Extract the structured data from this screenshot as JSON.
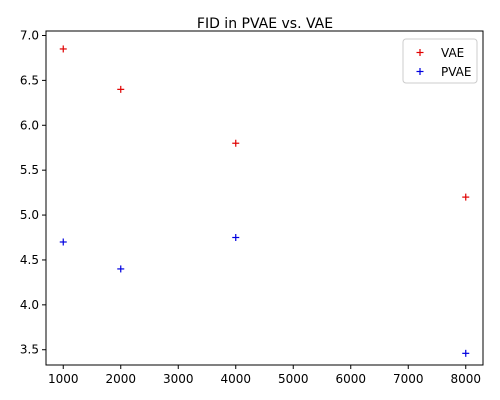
{
  "chart_data": {
    "type": "scatter",
    "title": "FID in PVAE vs. VAE",
    "xlabel": "",
    "ylabel": "",
    "xlim": [
      700,
      8300
    ],
    "ylim": [
      3.33,
      7.05
    ],
    "x_ticks": [
      1000,
      2000,
      3000,
      4000,
      5000,
      6000,
      7000,
      8000
    ],
    "y_ticks": [
      3.5,
      4.0,
      4.5,
      5.0,
      5.5,
      6.0,
      6.5,
      7.0
    ],
    "y_tick_labels": [
      "3.5",
      "4.0",
      "4.5",
      "5.0",
      "5.5",
      "6.0",
      "6.5",
      "7.0"
    ],
    "grid": false,
    "legend_position": "top-right",
    "marker": "plus",
    "series": [
      {
        "name": "VAE",
        "color": "#e00000",
        "points": [
          {
            "x": 1000,
            "y": 6.85
          },
          {
            "x": 2000,
            "y": 6.4
          },
          {
            "x": 4000,
            "y": 5.8
          },
          {
            "x": 8000,
            "y": 5.2
          }
        ]
      },
      {
        "name": "PVAE",
        "color": "#0000e0",
        "points": [
          {
            "x": 1000,
            "y": 4.7
          },
          {
            "x": 2000,
            "y": 4.4
          },
          {
            "x": 4000,
            "y": 4.75
          },
          {
            "x": 8000,
            "y": 3.46
          }
        ]
      }
    ]
  }
}
